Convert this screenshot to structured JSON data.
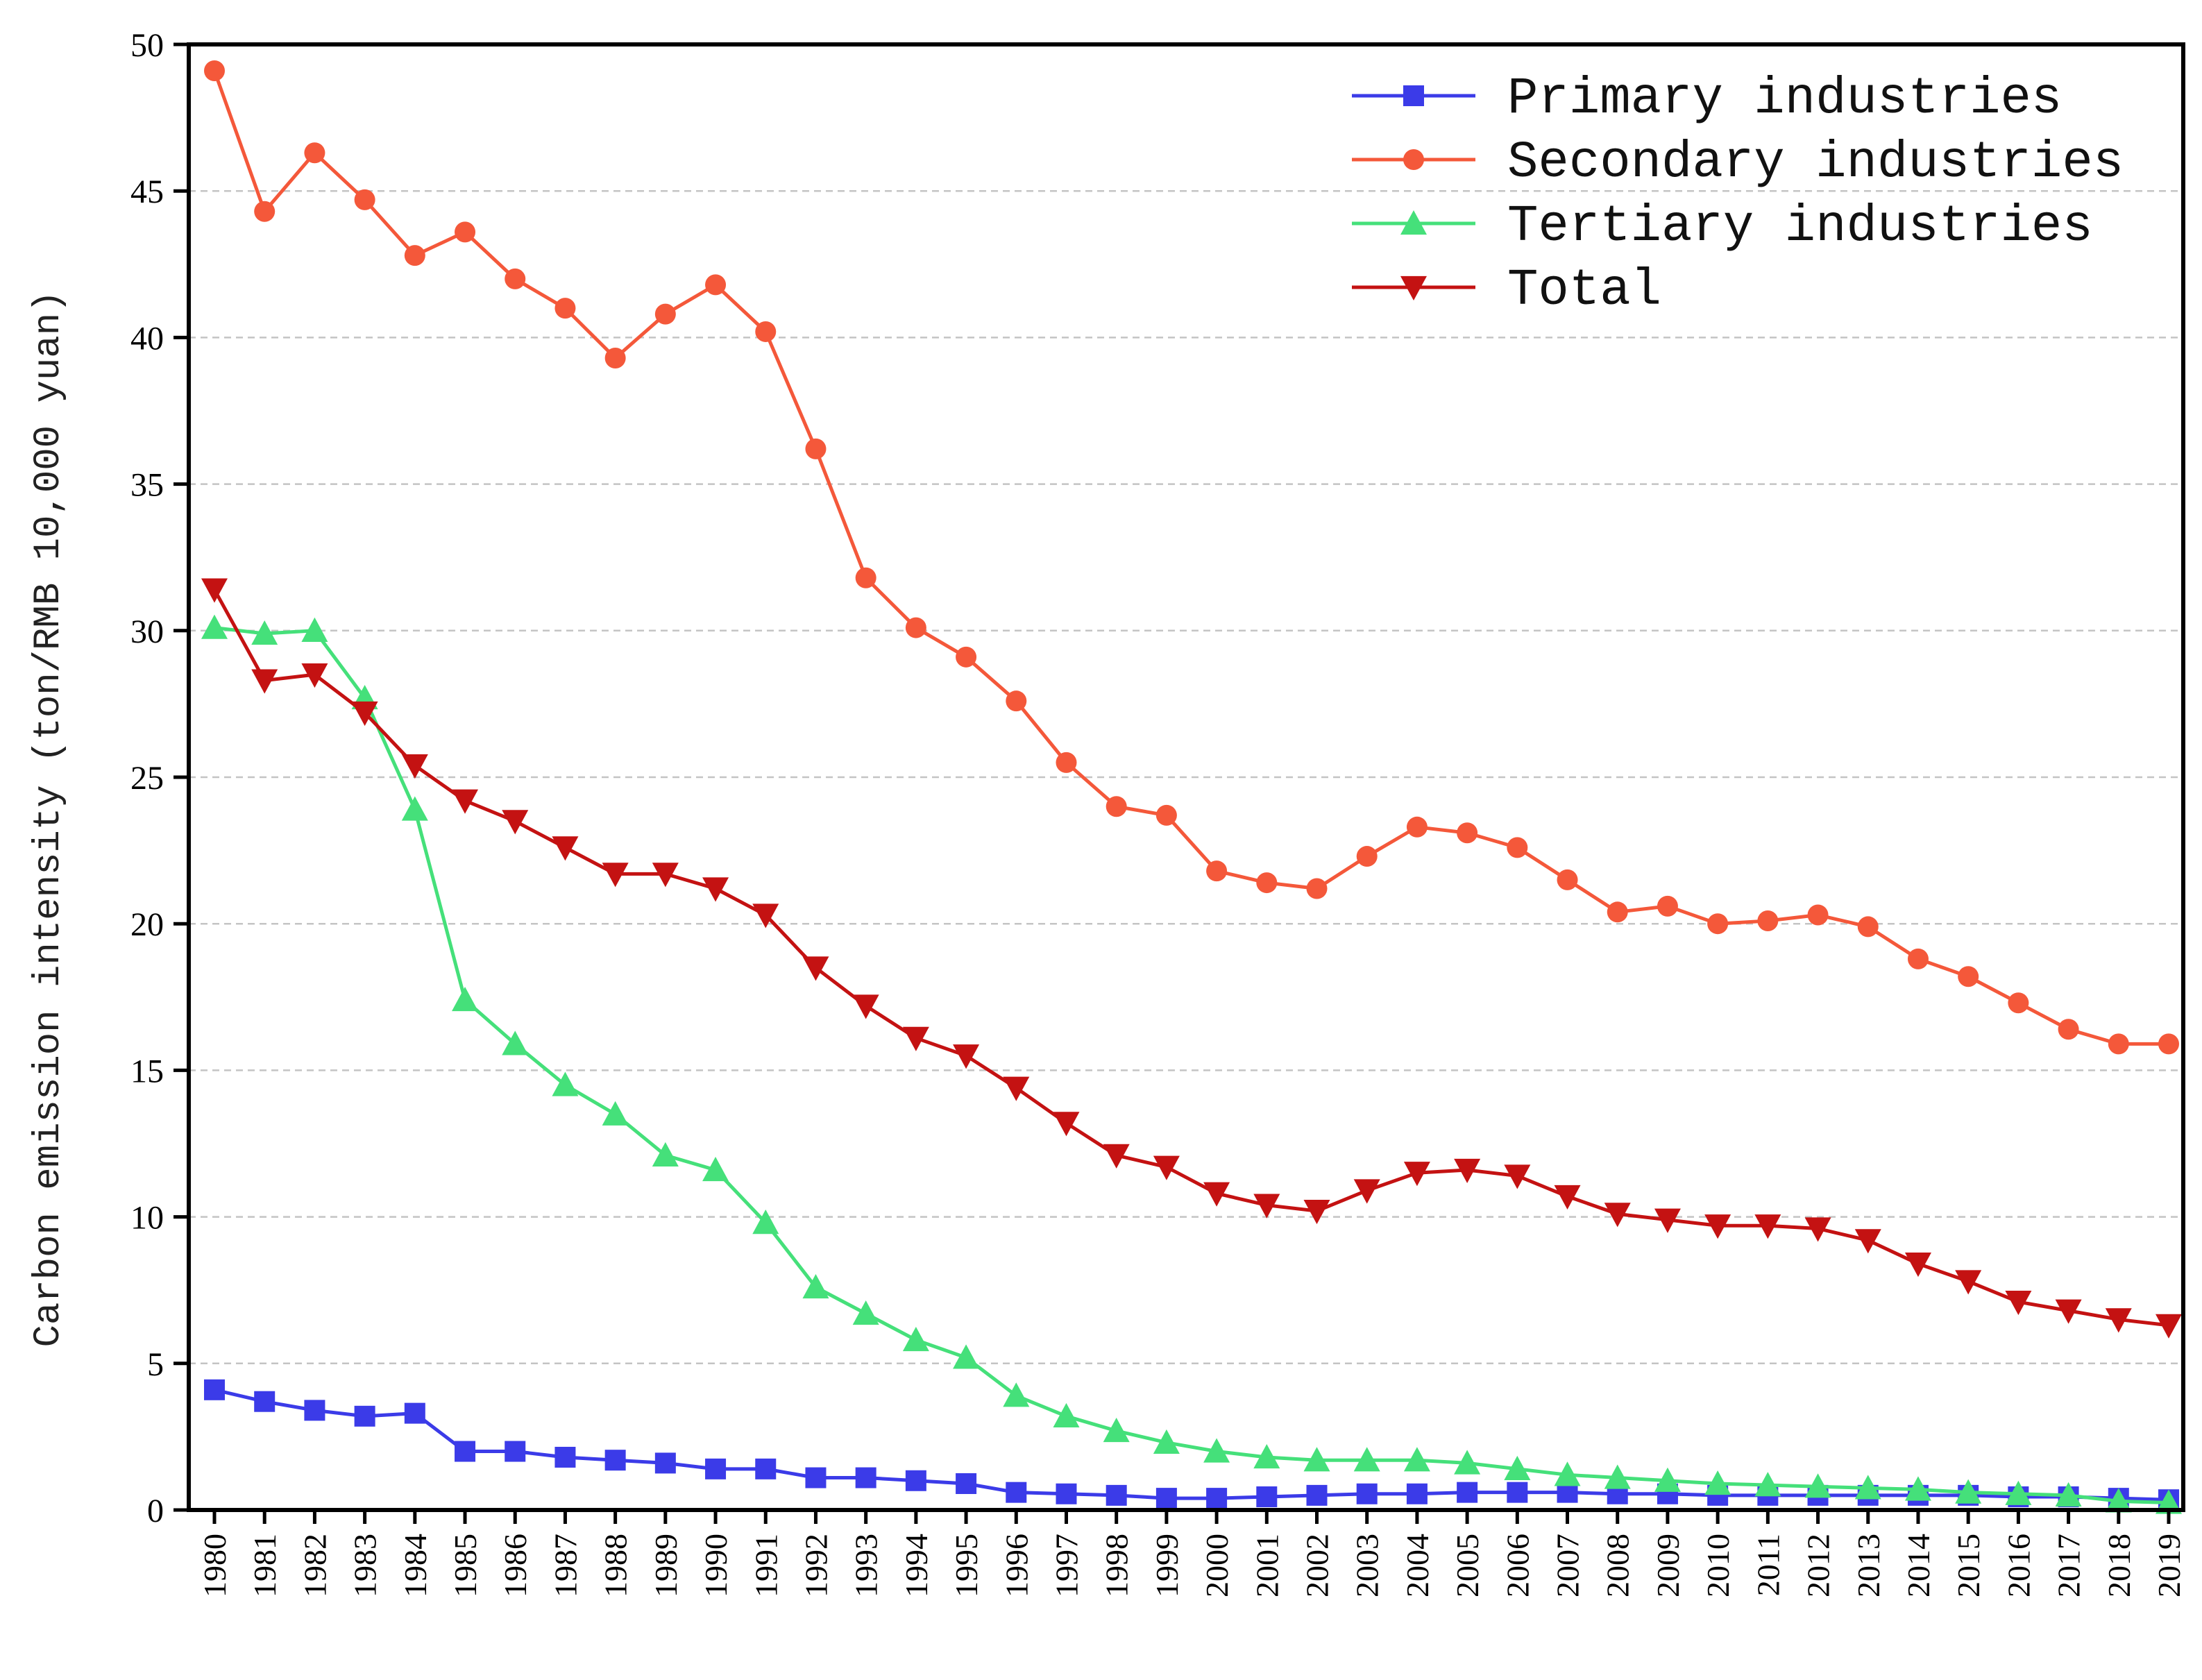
{
  "chart_data": {
    "type": "line",
    "title": "",
    "xlabel": "",
    "ylabel": "Carbon emission intensity (ton/RMB 10,000 yuan)",
    "ylim": [
      0,
      50
    ],
    "yticks": [
      0,
      5,
      10,
      15,
      20,
      25,
      30,
      35,
      40,
      45,
      50
    ],
    "grid": "horizontal dashed",
    "legend_position": "top-right",
    "categories": [
      "1980",
      "1981",
      "1982",
      "1983",
      "1984",
      "1985",
      "1986",
      "1987",
      "1988",
      "1989",
      "1990",
      "1991",
      "1992",
      "1993",
      "1994",
      "1995",
      "1996",
      "1997",
      "1998",
      "1999",
      "2000",
      "2001",
      "2002",
      "2003",
      "2004",
      "2005",
      "2006",
      "2007",
      "2008",
      "2009",
      "2010",
      "2011",
      "2012",
      "2013",
      "2014",
      "2015",
      "2016",
      "2017",
      "2018",
      "2019"
    ],
    "series": [
      {
        "name": "Primary industries",
        "color": "#3b3be8",
        "marker": "square",
        "values": [
          4.1,
          3.7,
          3.4,
          3.2,
          3.3,
          2.0,
          2.0,
          1.8,
          1.7,
          1.6,
          1.4,
          1.4,
          1.1,
          1.1,
          1.0,
          0.9,
          0.6,
          0.55,
          0.5,
          0.4,
          0.4,
          0.45,
          0.5,
          0.55,
          0.55,
          0.6,
          0.6,
          0.6,
          0.55,
          0.55,
          0.5,
          0.5,
          0.5,
          0.5,
          0.5,
          0.5,
          0.45,
          0.45,
          0.4,
          0.35
        ]
      },
      {
        "name": "Secondary industries",
        "color": "#f4583a",
        "marker": "circle",
        "values": [
          49.1,
          44.3,
          46.3,
          44.7,
          42.8,
          43.6,
          42.0,
          41.0,
          39.3,
          40.8,
          41.8,
          40.2,
          36.2,
          31.8,
          30.1,
          29.1,
          27.6,
          25.5,
          24.0,
          23.7,
          21.8,
          21.4,
          21.2,
          22.3,
          23.3,
          23.1,
          22.6,
          21.5,
          20.4,
          20.6,
          20.0,
          20.1,
          20.3,
          19.9,
          18.8,
          18.2,
          17.3,
          16.4,
          15.9,
          15.9
        ]
      },
      {
        "name": "Tertiary industries",
        "color": "#45e07a",
        "marker": "triangle-up",
        "values": [
          30.1,
          29.9,
          30.0,
          27.7,
          23.9,
          17.4,
          15.9,
          14.5,
          13.5,
          12.1,
          11.6,
          9.8,
          7.6,
          6.7,
          5.8,
          5.2,
          3.9,
          3.2,
          2.7,
          2.3,
          2.0,
          1.8,
          1.7,
          1.7,
          1.7,
          1.6,
          1.4,
          1.2,
          1.1,
          1.0,
          0.9,
          0.85,
          0.8,
          0.75,
          0.7,
          0.6,
          0.55,
          0.5,
          0.3,
          0.25
        ]
      },
      {
        "name": "Total",
        "color": "#c41212",
        "marker": "triangle-down",
        "values": [
          31.4,
          28.3,
          28.5,
          27.2,
          25.4,
          24.2,
          23.5,
          22.6,
          21.7,
          21.7,
          21.2,
          20.3,
          18.5,
          17.2,
          16.1,
          15.5,
          14.4,
          13.2,
          12.1,
          11.7,
          10.8,
          10.4,
          10.2,
          10.9,
          11.5,
          11.6,
          11.4,
          10.7,
          10.1,
          9.9,
          9.7,
          9.7,
          9.6,
          9.2,
          8.4,
          7.8,
          7.1,
          6.8,
          6.5,
          6.3
        ]
      }
    ]
  }
}
